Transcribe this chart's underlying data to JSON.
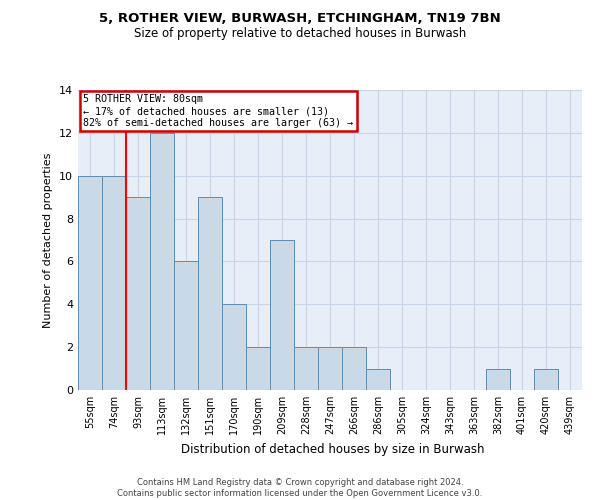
{
  "title1": "5, ROTHER VIEW, BURWASH, ETCHINGHAM, TN19 7BN",
  "title2": "Size of property relative to detached houses in Burwash",
  "xlabel": "Distribution of detached houses by size in Burwash",
  "ylabel": "Number of detached properties",
  "categories": [
    "55sqm",
    "74sqm",
    "93sqm",
    "113sqm",
    "132sqm",
    "151sqm",
    "170sqm",
    "190sqm",
    "209sqm",
    "228sqm",
    "247sqm",
    "266sqm",
    "286sqm",
    "305sqm",
    "324sqm",
    "343sqm",
    "363sqm",
    "382sqm",
    "401sqm",
    "420sqm",
    "439sqm"
  ],
  "values": [
    10,
    10,
    9,
    12,
    6,
    9,
    4,
    2,
    7,
    2,
    2,
    2,
    1,
    0,
    0,
    0,
    0,
    1,
    0,
    1,
    0
  ],
  "bar_color": "#c9d9e8",
  "bar_edge_color": "#5b8db8",
  "annotation_title": "5 ROTHER VIEW: 80sqm",
  "annotation_line1": "← 17% of detached houses are smaller (13)",
  "annotation_line2": "82% of semi-detached houses are larger (63) →",
  "ylim": [
    0,
    14
  ],
  "yticks": [
    0,
    2,
    4,
    6,
    8,
    10,
    12,
    14
  ],
  "footer1": "Contains HM Land Registry data © Crown copyright and database right 2024.",
  "footer2": "Contains public sector information licensed under the Open Government Licence v3.0.",
  "bg_color": "#ffffff",
  "plot_bg_color": "#e8eef7",
  "grid_color": "#c8d4e8",
  "annotation_box_color": "#cc0000",
  "red_line_x": 1.5
}
